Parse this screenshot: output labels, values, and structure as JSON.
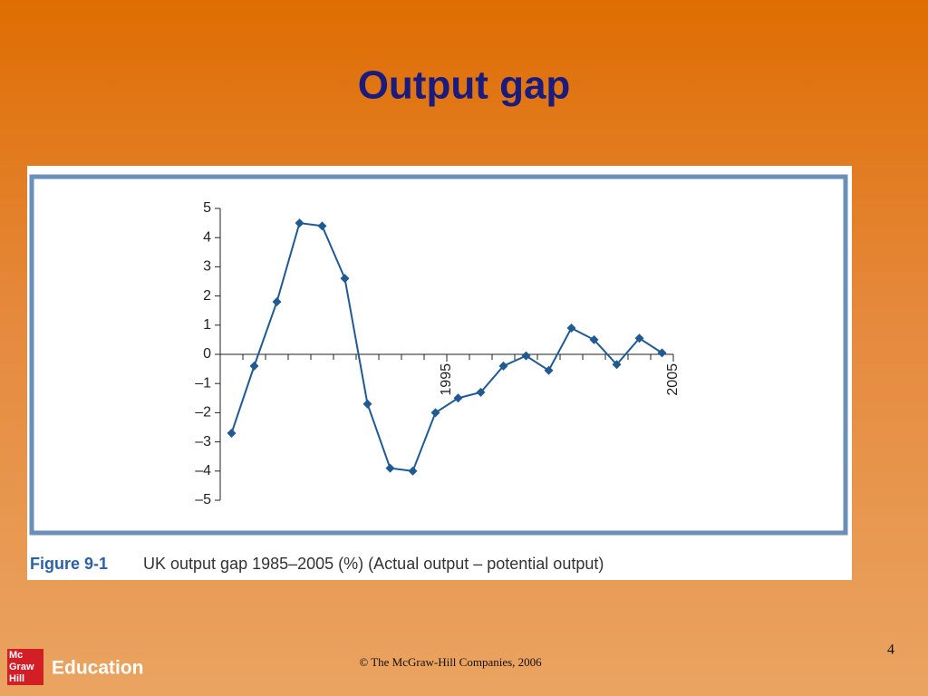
{
  "slide": {
    "title": "Output gap",
    "footer": "© The McGraw-Hill Companies, 2006",
    "page_number": "4",
    "logo_top": [
      "Mc",
      "Graw",
      "Hill"
    ],
    "logo_text": "Education"
  },
  "chart_data": {
    "type": "line",
    "figure_label": "Figure 9-1",
    "caption": "UK output gap 1985–2005 (%) (Actual output – potential output)",
    "x": [
      1985.5,
      1986.5,
      1987.5,
      1988.5,
      1989.5,
      1990.5,
      1991.5,
      1992.5,
      1993.5,
      1994.5,
      1995.5,
      1996.5,
      1997.5,
      1998.5,
      1999.5,
      2000.5,
      2001.5,
      2002.5,
      2003.5,
      2004.5
    ],
    "series": [
      {
        "color": "#1f5a92",
        "values": [
          -2.7,
          -0.4,
          1.8,
          4.5,
          4.4,
          2.6,
          -1.7,
          -3.9,
          -4.0,
          -2.0,
          -1.5,
          -1.3,
          -0.4,
          -0.05,
          -0.55,
          0.9,
          0.5,
          -0.35,
          0.55,
          0.05
        ]
      }
    ],
    "xlim": [
      1985,
      2005
    ],
    "xticks": [
      1995,
      2005
    ],
    "minor_xtick_step": 1,
    "ylim": [
      -5,
      5
    ],
    "yticks": [
      {
        "value": -5,
        "label": "–5"
      },
      {
        "value": -4,
        "label": "–4"
      },
      {
        "value": -3,
        "label": "–3"
      },
      {
        "value": -2,
        "label": "–2"
      },
      {
        "value": -1,
        "label": "–1"
      },
      0,
      1,
      2,
      3,
      4,
      5
    ]
  }
}
